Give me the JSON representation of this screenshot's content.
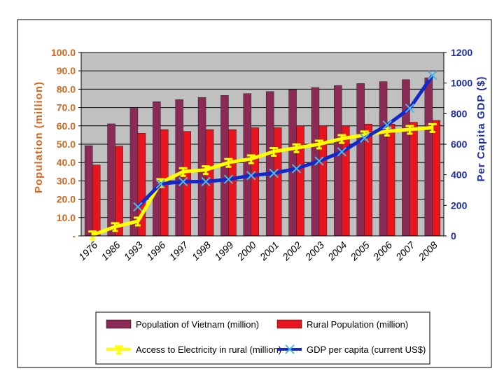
{
  "chart_data": {
    "type": "bar",
    "categories": [
      "1976",
      "1986",
      "1993",
      "1996",
      "1997",
      "1998",
      "1999",
      "2000",
      "2001",
      "2002",
      "2003",
      "2004",
      "2005",
      "2006",
      "2007",
      "2008"
    ],
    "ylabel": "Population  (million)",
    "y2label": "Per Capita GDP ($)",
    "ylim": [
      0,
      100
    ],
    "y2lim": [
      0,
      1200
    ],
    "yticks": [
      "-",
      "10.0",
      "20.0",
      "30.0",
      "40.0",
      "50.0",
      "60.0",
      "70.0",
      "80.0",
      "90.0",
      "100.0"
    ],
    "y2ticks": [
      "0",
      "200",
      "400",
      "600",
      "800",
      "1000",
      "1200"
    ],
    "grid": true,
    "legend_position": "bottom",
    "series": [
      {
        "name": "Population of Vietnam (million)",
        "type": "bar",
        "axis": "left",
        "color": "#8b2a55",
        "values": [
          49.2,
          61.1,
          69.6,
          73.2,
          74.3,
          75.5,
          76.6,
          77.6,
          78.7,
          79.7,
          80.9,
          82.0,
          83.1,
          84.1,
          85.2,
          86.2
        ]
      },
      {
        "name": "Rural Population (million)",
        "type": "bar",
        "axis": "left",
        "color": "#e8141e",
        "values": [
          38.7,
          49.0,
          56.0,
          58.0,
          57.0,
          58.0,
          58.0,
          59.0,
          59.0,
          60.0,
          60.0,
          60.0,
          61.0,
          61.0,
          62.0,
          63.0
        ]
      },
      {
        "name": "Access to Electricity in rural (million)",
        "type": "line",
        "axis": "left",
        "color": "#ffff00",
        "values": [
          0.5,
          5.0,
          8.0,
          29.0,
          35.0,
          36.0,
          40.0,
          42.0,
          46.0,
          48.0,
          50.0,
          53.0,
          55.0,
          57.0,
          58.0,
          59.0
        ]
      },
      {
        "name": "GDP per capita (current US$)",
        "type": "line",
        "axis": "right",
        "color": "#1428c8",
        "values": [
          null,
          null,
          190,
          340,
          355,
          355,
          370,
          395,
          410,
          440,
          490,
          550,
          640,
          725,
          835,
          1050
        ]
      }
    ]
  }
}
